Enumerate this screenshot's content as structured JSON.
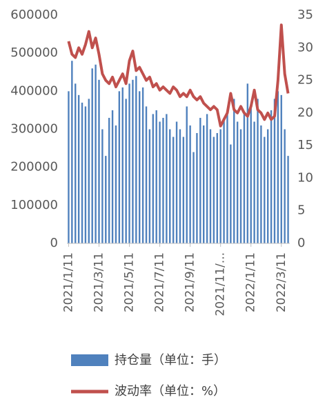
{
  "chart_data": {
    "type": "bar-line",
    "categories": [
      "2021/1/11",
      null,
      null,
      null,
      null,
      null,
      null,
      null,
      null,
      "2021/3/11",
      null,
      null,
      null,
      null,
      null,
      null,
      null,
      null,
      "2021/5/11",
      null,
      null,
      null,
      null,
      null,
      null,
      null,
      null,
      "2021/7/11",
      null,
      null,
      null,
      null,
      null,
      null,
      null,
      null,
      "2021/9/11",
      null,
      null,
      null,
      null,
      null,
      null,
      null,
      null,
      "2021/11/...",
      null,
      null,
      null,
      null,
      null,
      null,
      null,
      null,
      "2022/1/11",
      null,
      null,
      null,
      null,
      null,
      null,
      null,
      null,
      "2022/3/11",
      null,
      null
    ],
    "series": [
      {
        "name": "持仓量（单位：手）",
        "type": "bar",
        "color": "#4f81bd",
        "values": [
          400000,
          480000,
          420000,
          390000,
          370000,
          360000,
          380000,
          460000,
          470000,
          430000,
          300000,
          230000,
          330000,
          350000,
          310000,
          400000,
          410000,
          380000,
          420000,
          430000,
          440000,
          400000,
          410000,
          360000,
          300000,
          340000,
          350000,
          320000,
          330000,
          340000,
          300000,
          280000,
          320000,
          300000,
          280000,
          360000,
          310000,
          240000,
          290000,
          330000,
          310000,
          340000,
          300000,
          280000,
          290000,
          300000,
          330000,
          340000,
          260000,
          380000,
          320000,
          300000,
          340000,
          420000,
          360000,
          320000,
          380000,
          310000,
          280000,
          300000,
          350000,
          380000,
          400000,
          390000,
          300000,
          230000
        ]
      },
      {
        "name": "波动率（单位：%）",
        "type": "line",
        "axis": "y2",
        "color": "#c0504d",
        "values": [
          31,
          29,
          28.5,
          30,
          29,
          30.5,
          32.5,
          30,
          31.5,
          29,
          26,
          25,
          24.5,
          25.5,
          24,
          25,
          26,
          24.5,
          28,
          29.5,
          26.5,
          27,
          26,
          25,
          25.5,
          24,
          24.5,
          23.5,
          24,
          23.5,
          23,
          24,
          23.5,
          22.5,
          23,
          22.5,
          23.5,
          22.5,
          22,
          22.5,
          21.5,
          21,
          20.5,
          21,
          20.5,
          18,
          19,
          20,
          23,
          20.5,
          20,
          21,
          20,
          19.5,
          21,
          23.5,
          20.5,
          20,
          19,
          20,
          19,
          19.5,
          25,
          33.5,
          26,
          23
        ]
      }
    ],
    "ylim": [
      0,
      600000
    ],
    "yticks": [
      0,
      100000,
      200000,
      300000,
      400000,
      500000,
      600000
    ],
    "y2lim": [
      0,
      35
    ],
    "y2ticks": [
      0,
      5,
      10,
      15,
      20,
      25,
      30,
      35
    ]
  }
}
